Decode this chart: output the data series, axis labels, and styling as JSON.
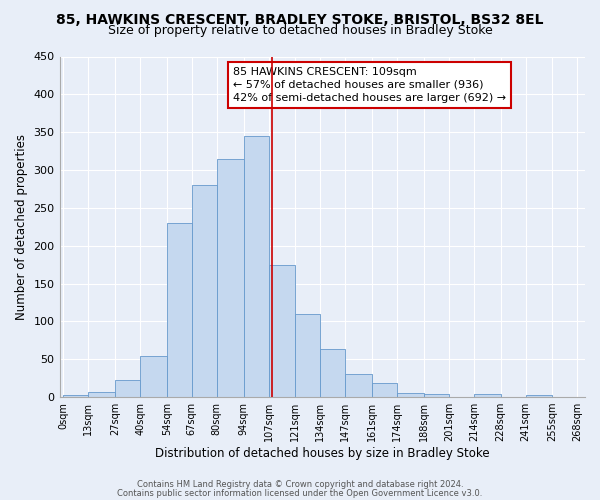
{
  "title1": "85, HAWKINS CRESCENT, BRADLEY STOKE, BRISTOL, BS32 8EL",
  "title2": "Size of property relative to detached houses in Bradley Stoke",
  "xlabel": "Distribution of detached houses by size in Bradley Stoke",
  "ylabel": "Number of detached properties",
  "bar_left_edges": [
    0,
    13,
    27,
    40,
    54,
    67,
    80,
    94,
    107,
    121,
    134,
    147,
    161,
    174,
    188,
    201,
    214,
    228,
    241,
    255
  ],
  "bar_widths": [
    13,
    14,
    13,
    14,
    13,
    13,
    14,
    13,
    14,
    13,
    13,
    14,
    13,
    14,
    13,
    13,
    14,
    13,
    14,
    13
  ],
  "bar_heights": [
    3,
    7,
    22,
    54,
    230,
    280,
    315,
    345,
    175,
    110,
    63,
    31,
    19,
    6,
    4,
    0,
    4,
    0,
    3,
    0
  ],
  "bar_color": "#c5d8ef",
  "bar_edgecolor": "#6699cc",
  "vline_x": 109,
  "vline_color": "#cc0000",
  "annotation_line1": "85 HAWKINS CRESCENT: 109sqm",
  "annotation_line2": "← 57% of detached houses are smaller (936)",
  "annotation_line3": "42% of semi-detached houses are larger (692) →",
  "annotation_box_color": "#ffffff",
  "annotation_box_edgecolor": "#cc0000",
  "ylim": [
    0,
    450
  ],
  "xlim": [
    -2,
    272
  ],
  "tick_labels": [
    "0sqm",
    "13sqm",
    "27sqm",
    "40sqm",
    "54sqm",
    "67sqm",
    "80sqm",
    "94sqm",
    "107sqm",
    "121sqm",
    "134sqm",
    "147sqm",
    "161sqm",
    "174sqm",
    "188sqm",
    "201sqm",
    "214sqm",
    "228sqm",
    "241sqm",
    "255sqm",
    "268sqm"
  ],
  "tick_positions": [
    0,
    13,
    27,
    40,
    54,
    67,
    80,
    94,
    107,
    121,
    134,
    147,
    161,
    174,
    188,
    201,
    214,
    228,
    241,
    255,
    268
  ],
  "ytick_positions": [
    0,
    50,
    100,
    150,
    200,
    250,
    300,
    350,
    400,
    450
  ],
  "footer1": "Contains HM Land Registry data © Crown copyright and database right 2024.",
  "footer2": "Contains public sector information licensed under the Open Government Licence v3.0.",
  "bg_color": "#e8eef8",
  "plot_bg_color": "#e8eef8",
  "grid_color": "#ffffff",
  "title1_fontsize": 10,
  "title2_fontsize": 9,
  "xlabel_fontsize": 8.5,
  "ylabel_fontsize": 8.5,
  "tick_fontsize": 7,
  "ytick_fontsize": 8,
  "annotation_fontsize": 8,
  "footer_fontsize": 6
}
